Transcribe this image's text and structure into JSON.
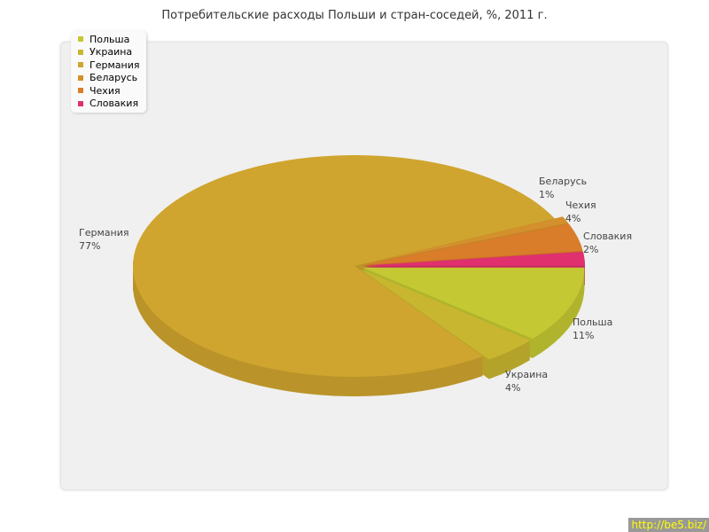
{
  "chart_data": {
    "type": "pie",
    "title": "Потребительские расходы Польши и стран-соседей, %, 2011 г.",
    "categories": [
      "Польша",
      "Украина",
      "Германия",
      "Беларусь",
      "Чехия",
      "Словакия"
    ],
    "values": [
      11,
      4,
      77,
      1,
      4,
      2
    ],
    "labels": [
      "11%",
      "4%",
      "77%",
      "1%",
      "4%",
      "2%"
    ],
    "colors": [
      "#c4c832",
      "#c9b630",
      "#cfa52f",
      "#d3902c",
      "#d97d2a",
      "#e0306e"
    ],
    "exploded": [
      true,
      true,
      false,
      true,
      true,
      true
    ],
    "style": "3d",
    "legend": "top-left"
  },
  "watermark": "http://be5.biz/"
}
